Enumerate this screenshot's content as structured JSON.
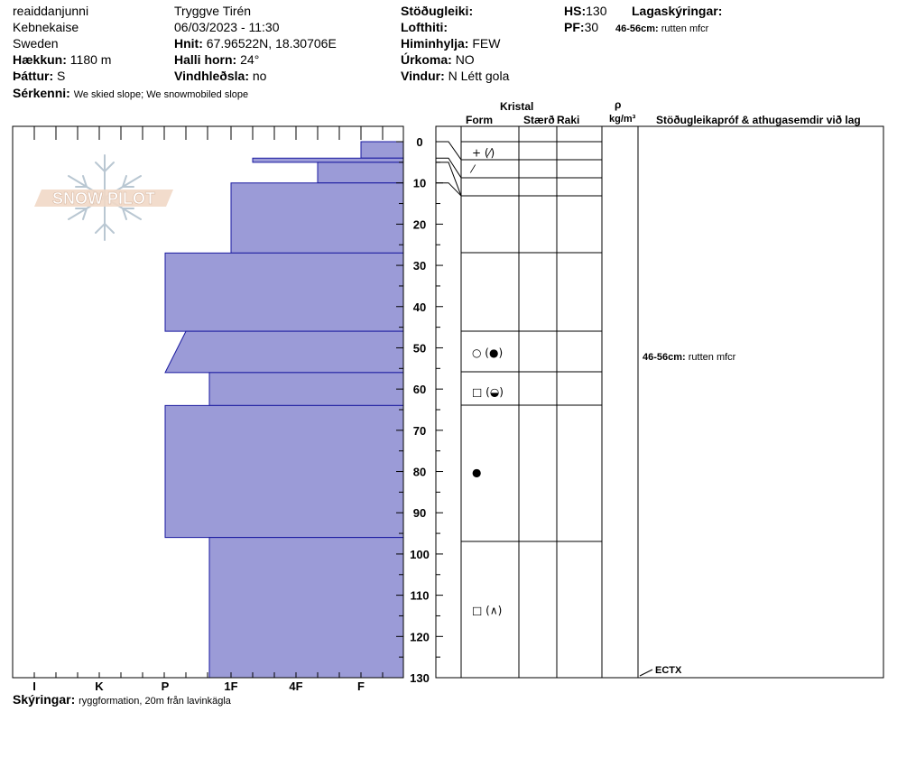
{
  "header": {
    "observer": "reaiddanjunni",
    "location": "Kebnekaise",
    "country": "Sweden",
    "elevation_label": "Hækkun:",
    "elevation": "1180 m",
    "aspect_label": "Þáttur:",
    "aspect": "S",
    "features_label": "Sérkenni:",
    "features": "We skied slope; We snowmobiled slope",
    "author": "Tryggve  Tirén",
    "datetime": "06/03/2023 - 11:30",
    "coords_label": "Hnit:",
    "coords": "67.96522N, 18.30706E",
    "slope_label": "Halli horn:",
    "slope": "24°",
    "wind_loading_label": "Vindhleðsla:",
    "wind_loading": "no",
    "stability_label": "Stöðugleiki:",
    "air_temp_label": "Lofthiti:",
    "sky_label": "Himinhylja:",
    "sky": "FEW",
    "precip_label": "Úrkoma:",
    "precip": "NO",
    "wind_label": "Vindur:",
    "wind": "N Létt gola",
    "hs_label": "HS:",
    "hs": "130",
    "pf_label": "PF:",
    "pf": "30",
    "layer_notes_label": "Lagaskýringar:",
    "layer_note_depth": "46-56cm:",
    "layer_note_text": "rutten mfcr"
  },
  "logo_text": "SNOW PILOT",
  "footer": {
    "label": "Skýringar:",
    "text": "ryggformation, 20m från lavinkägla"
  },
  "columns": {
    "kristal": "Kristal",
    "form": "Form",
    "size": "Stærð",
    "moisture": "Raki",
    "rho": "ρ",
    "density_unit": "kg/m³",
    "tests": "Stöðugleikapróf & athugasemdir við lag"
  },
  "comments": [
    {
      "depth": "46-56cm:",
      "text": "rutten mfcr"
    }
  ],
  "test_results": [
    "ECTX"
  ],
  "chart_data": {
    "type": "snow-profile",
    "depth_ticks": [
      "0",
      "10",
      "20",
      "30",
      "40",
      "50",
      "60",
      "70",
      "80",
      "90",
      "100",
      "110",
      "120",
      "130"
    ],
    "depth_range_cm": [
      0,
      130
    ],
    "hardness_ticks": [
      "I",
      "K",
      "P",
      "1F",
      "4F",
      "F"
    ],
    "hand_hardness_layers": [
      {
        "top_cm": 0,
        "bottom_cm": 4,
        "hardness": "F+"
      },
      {
        "top_cm": 4,
        "bottom_cm": 5,
        "hardness": "1F+"
      },
      {
        "top_cm": 5,
        "bottom_cm": 10,
        "hardness": "4F+"
      },
      {
        "top_cm": 10,
        "bottom_cm": 27,
        "hardness": "1F"
      },
      {
        "top_cm": 27,
        "bottom_cm": 46,
        "hardness": "P"
      },
      {
        "top_cm": 46,
        "bottom_cm": 56,
        "hardness": "P to P+",
        "note": "tapered"
      },
      {
        "top_cm": 56,
        "bottom_cm": 64,
        "hardness": "P+"
      },
      {
        "top_cm": 64,
        "bottom_cm": 96,
        "hardness": "P"
      },
      {
        "top_cm": 96,
        "bottom_cm": 130,
        "hardness": "P+"
      }
    ],
    "grain_forms": [
      {
        "depth_cm": 2.5,
        "symbols": "+ (⁄)"
      },
      {
        "depth_cm": 6.5,
        "symbols": "⁄"
      },
      {
        "depth_cm": 51,
        "symbols": "○ (●)"
      },
      {
        "depth_cm": 60.5,
        "symbols": "□ (◒)"
      },
      {
        "depth_cm": 80,
        "symbols": "●"
      },
      {
        "depth_cm": 113.5,
        "symbols": "□ (∧)"
      }
    ],
    "test_markers": [
      {
        "depth_cm": 130,
        "result": "ECTX"
      }
    ]
  }
}
